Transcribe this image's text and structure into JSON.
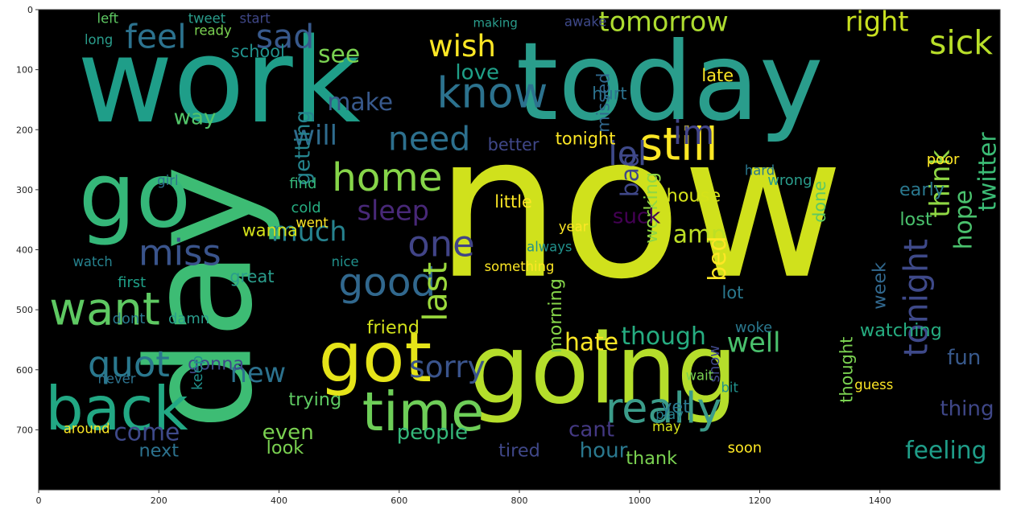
{
  "chart_data": {
    "type": "wordcloud",
    "title": "",
    "xlabel": "",
    "ylabel": "",
    "xlim": [
      0,
      1600
    ],
    "ylim": [
      800,
      0
    ],
    "x_ticks": [
      "0",
      "200",
      "400",
      "600",
      "800",
      "1000",
      "1200",
      "1400"
    ],
    "y_ticks": [
      "0",
      "100",
      "200",
      "300",
      "400",
      "500",
      "600",
      "700"
    ],
    "grid": false,
    "background_color": "#000000",
    "palette": [
      "#440154",
      "#3b528b",
      "#21918c",
      "#5ec962",
      "#fde725",
      "#2c728e",
      "#addc30",
      "#472d7b"
    ],
    "words": [
      {
        "text": "now",
        "x": 1000,
        "y": 330,
        "size": 330,
        "color": "#d0e11c",
        "rot": 0
      },
      {
        "text": "work",
        "x": 300,
        "y": 120,
        "size": 195,
        "color": "#1f9e89",
        "rot": 0
      },
      {
        "text": "day",
        "x": 270,
        "y": 480,
        "size": 240,
        "color": "#3dbc74",
        "rot": -90
      },
      {
        "text": "today",
        "x": 1050,
        "y": 120,
        "size": 180,
        "color": "#2a9d8c",
        "rot": 0
      },
      {
        "text": "going",
        "x": 940,
        "y": 600,
        "size": 160,
        "color": "#b5de2b",
        "rot": 0
      },
      {
        "text": "go",
        "x": 160,
        "y": 310,
        "size": 150,
        "color": "#35b779",
        "rot": 0
      },
      {
        "text": "got",
        "x": 560,
        "y": 580,
        "size": 115,
        "color": "#e5e419",
        "rot": 0
      },
      {
        "text": "back",
        "x": 130,
        "y": 665,
        "size": 100,
        "color": "#22a884",
        "rot": 0
      },
      {
        "text": "time",
        "x": 640,
        "y": 670,
        "size": 90,
        "color": "#6ece58",
        "rot": 0
      },
      {
        "text": "still",
        "x": 1065,
        "y": 225,
        "size": 75,
        "color": "#fde725",
        "rot": 0
      },
      {
        "text": "want",
        "x": 110,
        "y": 500,
        "size": 75,
        "color": "#5ec962",
        "rot": 0
      },
      {
        "text": "know",
        "x": 755,
        "y": 140,
        "size": 70,
        "color": "#2c728e",
        "rot": 0
      },
      {
        "text": "really",
        "x": 1040,
        "y": 665,
        "size": 70,
        "color": "#3b9c8a",
        "rot": 0
      },
      {
        "text": "home",
        "x": 580,
        "y": 280,
        "size": 65,
        "color": "#86d549",
        "rot": 0
      },
      {
        "text": "good",
        "x": 580,
        "y": 455,
        "size": 65,
        "color": "#31688e",
        "rot": 0
      },
      {
        "text": "miss",
        "x": 235,
        "y": 405,
        "size": 60,
        "color": "#3a548c",
        "rot": 0
      },
      {
        "text": "one",
        "x": 670,
        "y": 390,
        "size": 60,
        "color": "#414487",
        "rot": 0
      },
      {
        "text": "quot",
        "x": 150,
        "y": 590,
        "size": 60,
        "color": "#2a788e",
        "rot": 0
      },
      {
        "text": "feel",
        "x": 195,
        "y": 45,
        "size": 55,
        "color": "#2c728e",
        "rot": 0
      },
      {
        "text": "sad",
        "x": 410,
        "y": 45,
        "size": 55,
        "color": "#38598c",
        "rot": 0
      },
      {
        "text": "need",
        "x": 650,
        "y": 215,
        "size": 55,
        "color": "#2d708e",
        "rot": 0
      },
      {
        "text": "sick",
        "x": 1535,
        "y": 55,
        "size": 55,
        "color": "#b8de29",
        "rot": 0
      },
      {
        "text": "wish",
        "x": 705,
        "y": 60,
        "size": 50,
        "color": "#fde725",
        "rot": 0
      },
      {
        "text": "lol",
        "x": 980,
        "y": 240,
        "size": 55,
        "color": "#3e4989",
        "rot": 0
      },
      {
        "text": "im",
        "x": 1090,
        "y": 205,
        "size": 55,
        "color": "#414487",
        "rot": 0
      },
      {
        "text": "last",
        "x": 660,
        "y": 470,
        "size": 55,
        "color": "#9bd93c",
        "rot": -90
      },
      {
        "text": "tonight",
        "x": 1460,
        "y": 480,
        "size": 55,
        "color": "#3e4989",
        "rot": -90
      },
      {
        "text": "sorry",
        "x": 680,
        "y": 595,
        "size": 50,
        "color": "#3a548c",
        "rot": 0
      },
      {
        "text": "tomorrow",
        "x": 1040,
        "y": 20,
        "size": 45,
        "color": "#addc30",
        "rot": 0
      },
      {
        "text": "right",
        "x": 1395,
        "y": 20,
        "size": 45,
        "color": "#c8e020",
        "rot": 0
      },
      {
        "text": "think",
        "x": 1500,
        "y": 290,
        "size": 45,
        "color": "#8fd744",
        "rot": -90
      },
      {
        "text": "hope",
        "x": 1540,
        "y": 350,
        "size": 40,
        "color": "#4ac16d",
        "rot": -90
      },
      {
        "text": "twitter",
        "x": 1580,
        "y": 270,
        "size": 40,
        "color": "#3bbb75",
        "rot": -90
      },
      {
        "text": "sleep",
        "x": 590,
        "y": 335,
        "size": 45,
        "color": "#482878",
        "rot": 0
      },
      {
        "text": "much",
        "x": 450,
        "y": 370,
        "size": 45,
        "color": "#26828e",
        "rot": 0
      },
      {
        "text": "will",
        "x": 460,
        "y": 210,
        "size": 45,
        "color": "#2f6c8e",
        "rot": 0
      },
      {
        "text": "make",
        "x": 535,
        "y": 155,
        "size": 40,
        "color": "#38598c",
        "rot": 0
      },
      {
        "text": "see",
        "x": 500,
        "y": 75,
        "size": 40,
        "color": "#7ad151",
        "rot": 0
      },
      {
        "text": "love",
        "x": 730,
        "y": 105,
        "size": 35,
        "color": "#1fa088",
        "rot": 0
      },
      {
        "text": "getting",
        "x": 440,
        "y": 230,
        "size": 35,
        "color": "#25848e",
        "rot": -90
      },
      {
        "text": "way",
        "x": 260,
        "y": 180,
        "size": 35,
        "color": "#52c569",
        "rot": 0
      },
      {
        "text": "hate",
        "x": 920,
        "y": 555,
        "size": 40,
        "color": "#fde725",
        "rot": 0
      },
      {
        "text": "though",
        "x": 1040,
        "y": 545,
        "size": 40,
        "color": "#26ad81",
        "rot": 0
      },
      {
        "text": "well",
        "x": 1190,
        "y": 555,
        "size": 45,
        "color": "#4ac16d",
        "rot": 0
      },
      {
        "text": "amp",
        "x": 1100,
        "y": 375,
        "size": 40,
        "color": "#bddf26",
        "rot": 0
      },
      {
        "text": "bed",
        "x": 1130,
        "y": 415,
        "size": 40,
        "color": "#fde725",
        "rot": -90
      },
      {
        "text": "bad",
        "x": 985,
        "y": 275,
        "size": 40,
        "color": "#3f4788",
        "rot": -90
      },
      {
        "text": "working",
        "x": 1020,
        "y": 330,
        "size": 30,
        "color": "#8fd744",
        "rot": -90
      },
      {
        "text": "suck",
        "x": 995,
        "y": 345,
        "size": 35,
        "color": "#440154",
        "rot": 0
      },
      {
        "text": "house",
        "x": 1090,
        "y": 310,
        "size": 30,
        "color": "#d5e21a",
        "rot": 0
      },
      {
        "text": "new",
        "x": 365,
        "y": 605,
        "size": 45,
        "color": "#2c728e",
        "rot": 0
      },
      {
        "text": "come",
        "x": 180,
        "y": 705,
        "size": 40,
        "color": "#3e4989",
        "rot": 0
      },
      {
        "text": "even",
        "x": 415,
        "y": 705,
        "size": 35,
        "color": "#7ad151",
        "rot": 0
      },
      {
        "text": "people",
        "x": 655,
        "y": 705,
        "size": 35,
        "color": "#35b779",
        "rot": 0
      },
      {
        "text": "feeling",
        "x": 1510,
        "y": 735,
        "size": 40,
        "color": "#1f9e89",
        "rot": 0
      },
      {
        "text": "thing",
        "x": 1545,
        "y": 665,
        "size": 35,
        "color": "#3f4788",
        "rot": 0
      },
      {
        "text": "fun",
        "x": 1540,
        "y": 580,
        "size": 35,
        "color": "#38598c",
        "rot": 0
      },
      {
        "text": "lost",
        "x": 1460,
        "y": 350,
        "size": 30,
        "color": "#4ac16d",
        "rot": 0
      },
      {
        "text": "early",
        "x": 1470,
        "y": 300,
        "size": 30,
        "color": "#2a788e",
        "rot": 0
      },
      {
        "text": "morning",
        "x": 860,
        "y": 510,
        "size": 30,
        "color": "#86d549",
        "rot": -90
      },
      {
        "text": "week",
        "x": 1400,
        "y": 460,
        "size": 30,
        "color": "#31688e",
        "rot": -90
      },
      {
        "text": "hour",
        "x": 940,
        "y": 735,
        "size": 35,
        "color": "#2a788e",
        "rot": 0
      },
      {
        "text": "cant",
        "x": 920,
        "y": 700,
        "size": 35,
        "color": "#443983",
        "rot": 0
      },
      {
        "text": "thank",
        "x": 1020,
        "y": 748,
        "size": 30,
        "color": "#7ad151",
        "rot": 0
      },
      {
        "text": "yet",
        "x": 1060,
        "y": 662,
        "size": 30,
        "color": "#2a788e",
        "rot": 0
      },
      {
        "text": "friend",
        "x": 590,
        "y": 530,
        "size": 30,
        "color": "#d2e21b",
        "rot": 0
      },
      {
        "text": "watching",
        "x": 1435,
        "y": 535,
        "size": 30,
        "color": "#26ad81",
        "rot": 0
      },
      {
        "text": "trying",
        "x": 460,
        "y": 650,
        "size": 30,
        "color": "#5ec962",
        "rot": 0
      },
      {
        "text": "gonna",
        "x": 295,
        "y": 590,
        "size": 30,
        "color": "#3e4989",
        "rot": 0
      },
      {
        "text": "tired",
        "x": 800,
        "y": 735,
        "size": 30,
        "color": "#3f4788",
        "rot": 0
      },
      {
        "text": "wanna",
        "x": 385,
        "y": 368,
        "size": 28,
        "color": "#d5e21a",
        "rot": 0
      },
      {
        "text": "great",
        "x": 355,
        "y": 445,
        "size": 28,
        "color": "#2a9d8c",
        "rot": 0
      },
      {
        "text": "better",
        "x": 790,
        "y": 225,
        "size": 28,
        "color": "#3f4788",
        "rot": 0
      },
      {
        "text": "tonight",
        "x": 910,
        "y": 215,
        "size": 28,
        "color": "#fde725",
        "rot": 0
      },
      {
        "text": "little",
        "x": 790,
        "y": 320,
        "size": 28,
        "color": "#fde725",
        "rot": 0
      },
      {
        "text": "missed",
        "x": 940,
        "y": 155,
        "size": 28,
        "color": "#31688e",
        "rot": -90
      },
      {
        "text": "hurt",
        "x": 950,
        "y": 140,
        "size": 28,
        "color": "#2c728e",
        "rot": 0
      },
      {
        "text": "late",
        "x": 1130,
        "y": 110,
        "size": 28,
        "color": "#fde725",
        "rot": 0
      },
      {
        "text": "school",
        "x": 365,
        "y": 70,
        "size": 28,
        "color": "#21918c",
        "rot": 0
      },
      {
        "text": "thought",
        "x": 1345,
        "y": 600,
        "size": 28,
        "color": "#7ad151",
        "rot": -90
      },
      {
        "text": "woke",
        "x": 1190,
        "y": 530,
        "size": 24,
        "color": "#2a788e",
        "rot": 0
      },
      {
        "text": "show",
        "x": 1125,
        "y": 590,
        "size": 24,
        "color": "#3f4788",
        "rot": -90
      },
      {
        "text": "look",
        "x": 410,
        "y": 730,
        "size": 30,
        "color": "#7ad151",
        "rot": 0
      },
      {
        "text": "next",
        "x": 200,
        "y": 735,
        "size": 30,
        "color": "#2c728e",
        "rot": 0
      },
      {
        "text": "around",
        "x": 80,
        "y": 698,
        "size": 22,
        "color": "#fde725",
        "rot": 0
      },
      {
        "text": "keep",
        "x": 265,
        "y": 605,
        "size": 24,
        "color": "#21918c",
        "rot": -90
      },
      {
        "text": "never",
        "x": 130,
        "y": 615,
        "size": 22,
        "color": "#2c728e",
        "rot": 0
      },
      {
        "text": "dont",
        "x": 150,
        "y": 515,
        "size": 24,
        "color": "#2a788e",
        "rot": 0
      },
      {
        "text": "damn",
        "x": 250,
        "y": 515,
        "size": 24,
        "color": "#2a9d8c",
        "rot": 0
      },
      {
        "text": "first",
        "x": 155,
        "y": 455,
        "size": 24,
        "color": "#1fa088",
        "rot": 0
      },
      {
        "text": "watch",
        "x": 90,
        "y": 420,
        "size": 22,
        "color": "#26828e",
        "rot": 0
      },
      {
        "text": "girl",
        "x": 215,
        "y": 285,
        "size": 22,
        "color": "#2c728e",
        "rot": 0
      },
      {
        "text": "find",
        "x": 440,
        "y": 290,
        "size": 24,
        "color": "#35b779",
        "rot": 0
      },
      {
        "text": "cold",
        "x": 445,
        "y": 330,
        "size": 24,
        "color": "#26ad81",
        "rot": 0
      },
      {
        "text": "went",
        "x": 455,
        "y": 355,
        "size": 22,
        "color": "#fde725",
        "rot": 0
      },
      {
        "text": "nice",
        "x": 510,
        "y": 420,
        "size": 22,
        "color": "#21918c",
        "rot": 0
      },
      {
        "text": "always",
        "x": 850,
        "y": 395,
        "size": 22,
        "color": "#21918c",
        "rot": 0
      },
      {
        "text": "something",
        "x": 800,
        "y": 428,
        "size": 22,
        "color": "#fde725",
        "rot": 0
      },
      {
        "text": "year",
        "x": 890,
        "y": 362,
        "size": 22,
        "color": "#fde725",
        "rot": 0
      },
      {
        "text": "lot",
        "x": 1155,
        "y": 472,
        "size": 28,
        "color": "#2a788e",
        "rot": 0
      },
      {
        "text": "done",
        "x": 1300,
        "y": 320,
        "size": 28,
        "color": "#5ec962",
        "rot": -90
      },
      {
        "text": "poor",
        "x": 1505,
        "y": 250,
        "size": 24,
        "color": "#fde725",
        "rot": 0
      },
      {
        "text": "guess",
        "x": 1390,
        "y": 625,
        "size": 22,
        "color": "#fde725",
        "rot": 0
      },
      {
        "text": "soon",
        "x": 1175,
        "y": 730,
        "size": 24,
        "color": "#fde725",
        "rot": 0
      },
      {
        "text": "may",
        "x": 1045,
        "y": 695,
        "size": 22,
        "color": "#d5e21a",
        "rot": 0
      },
      {
        "text": "play",
        "x": 1050,
        "y": 675,
        "size": 22,
        "color": "#26828e",
        "rot": 0
      },
      {
        "text": "wait",
        "x": 1100,
        "y": 610,
        "size": 22,
        "color": "#7ad151",
        "rot": 0
      },
      {
        "text": "bit",
        "x": 1150,
        "y": 630,
        "size": 22,
        "color": "#21918c",
        "rot": 0
      },
      {
        "text": "hard",
        "x": 1200,
        "y": 268,
        "size": 22,
        "color": "#2a788e",
        "rot": 0
      },
      {
        "text": "wrong",
        "x": 1250,
        "y": 285,
        "size": 24,
        "color": "#2a9d8c",
        "rot": 0
      },
      {
        "text": "ready",
        "x": 290,
        "y": 35,
        "size": 22,
        "color": "#7ad151",
        "rot": 0
      },
      {
        "text": "tweet",
        "x": 280,
        "y": 15,
        "size": 22,
        "color": "#2a9d8c",
        "rot": 0
      },
      {
        "text": "start",
        "x": 360,
        "y": 15,
        "size": 22,
        "color": "#3f4788",
        "rot": 0
      },
      {
        "text": "left",
        "x": 115,
        "y": 15,
        "size": 22,
        "color": "#5ec962",
        "rot": 0
      },
      {
        "text": "long",
        "x": 100,
        "y": 50,
        "size": 22,
        "color": "#2a9d8c",
        "rot": 0
      },
      {
        "text": "awake",
        "x": 910,
        "y": 20,
        "size": 22,
        "color": "#3e4989",
        "rot": 0
      },
      {
        "text": "making",
        "x": 760,
        "y": 22,
        "size": 20,
        "color": "#2a9d8c",
        "rot": 0
      }
    ]
  }
}
